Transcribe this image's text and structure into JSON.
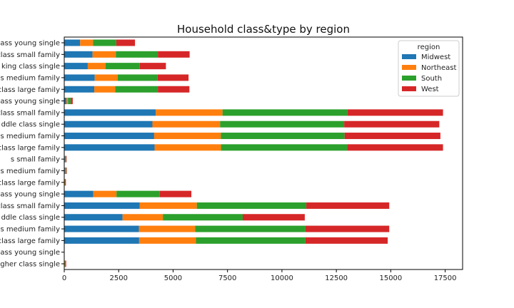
{
  "chart_data": {
    "type": "bar",
    "orientation": "horizontal",
    "stacked": true,
    "title": "Household class&type by region",
    "xlabel": "",
    "ylabel": "",
    "xlim": [
      0,
      18300
    ],
    "xticks": [
      0,
      2500,
      5000,
      7500,
      10000,
      12500,
      15000,
      17500
    ],
    "xtick_labels": [
      "0",
      "2500",
      "5000",
      "7500",
      "10000",
      "12500",
      "15000",
      "17500"
    ],
    "grid": false,
    "legend": {
      "title": "region",
      "placement": "top-right"
    },
    "categories": [
      "class young single",
      "class small family",
      "king class single",
      "s medium family",
      "class large family",
      "ass young single",
      "class small family",
      "ddle class single",
      "s medium family",
      "class large family",
      "s small family",
      "s medium family",
      "class large family",
      "ass young single",
      "class small family",
      "ddle class single",
      "s medium family",
      "class large family",
      "ass young single",
      "gher class single"
    ],
    "series": [
      {
        "name": "Midwest",
        "color": "#1f77b4",
        "values": [
          730,
          1300,
          1080,
          1400,
          1380,
          100,
          4200,
          4050,
          4130,
          4150,
          30,
          30,
          20,
          1330,
          3470,
          2680,
          3430,
          3440,
          0,
          20
        ]
      },
      {
        "name": "Northeast",
        "color": "#ff7f0e",
        "values": [
          590,
          1070,
          820,
          1060,
          960,
          70,
          3070,
          3110,
          3060,
          3050,
          20,
          20,
          10,
          1070,
          2620,
          1850,
          2580,
          2610,
          0,
          10
        ]
      },
      {
        "name": "South",
        "color": "#2ca02c",
        "values": [
          1070,
          1930,
          1570,
          1830,
          1960,
          130,
          5740,
          5700,
          5690,
          5800,
          30,
          40,
          20,
          1990,
          5030,
          3670,
          5070,
          5030,
          0,
          30
        ]
      },
      {
        "name": "West",
        "color": "#d62728",
        "values": [
          860,
          1460,
          1200,
          1420,
          1450,
          90,
          4390,
          4370,
          4400,
          4400,
          20,
          20,
          20,
          1450,
          3810,
          2850,
          3850,
          3780,
          0,
          10
        ]
      }
    ]
  }
}
